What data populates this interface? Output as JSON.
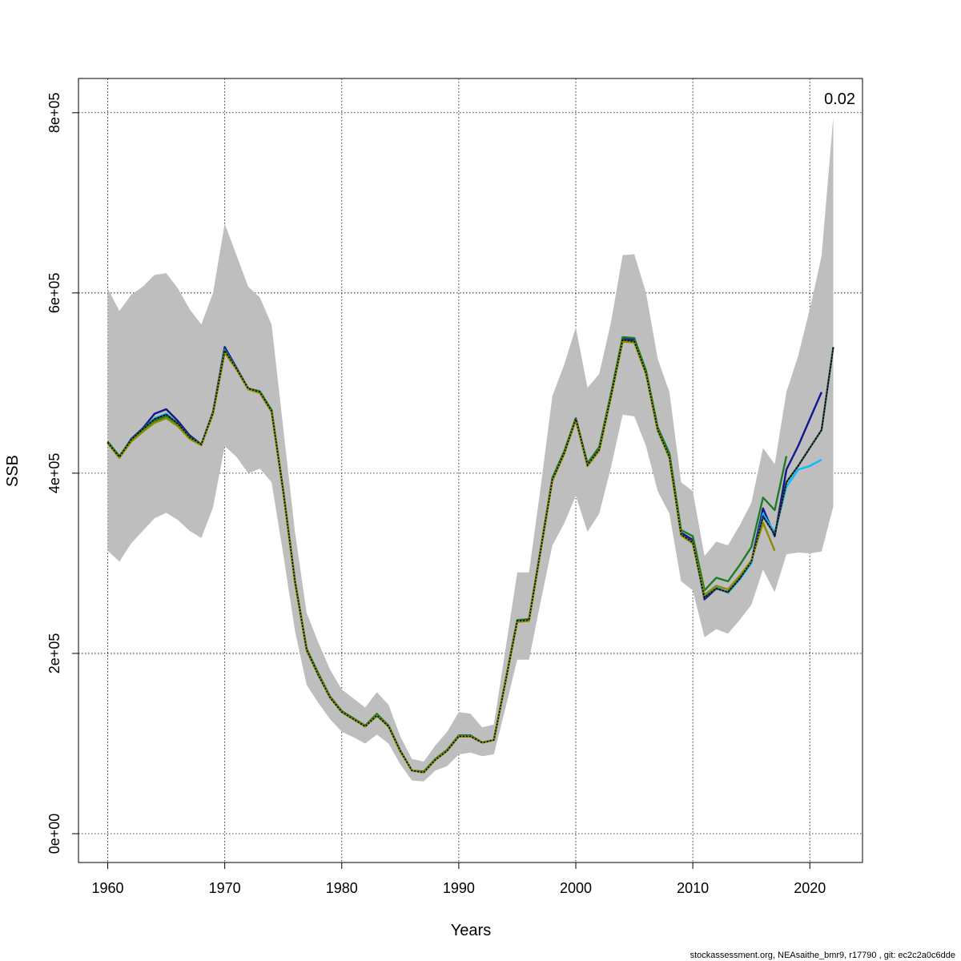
{
  "chart_data": {
    "type": "line",
    "title": "",
    "xlabel": "Years",
    "ylabel": "SSB",
    "xlim": [
      1957.5,
      2024.5
    ],
    "ylim": [
      -32000,
      838000
    ],
    "x_ticks": [
      1960,
      1970,
      1980,
      1990,
      2000,
      2010,
      2020
    ],
    "x_tick_labels": [
      "1960",
      "1970",
      "1980",
      "1990",
      "2000",
      "2010",
      "2020"
    ],
    "y_ticks": [
      0,
      200000,
      400000,
      600000,
      800000
    ],
    "y_tick_labels": [
      "0e+00",
      "2e+05",
      "4e+05",
      "6e+05",
      "8e+05"
    ],
    "grid": true,
    "annotation": "0.02",
    "footer": "stockassessment.org, NEAsaithe_bmr9, r17790 , git: ec2c2a0c6dde",
    "confidence_band": {
      "color": "#bebebe",
      "x": [
        1960,
        1961,
        1962,
        1963,
        1964,
        1965,
        1966,
        1967,
        1968,
        1969,
        1970,
        1971,
        1972,
        1973,
        1974,
        1975,
        1976,
        1977,
        1978,
        1979,
        1980,
        1981,
        1982,
        1983,
        1984,
        1985,
        1986,
        1987,
        1988,
        1989,
        1990,
        1991,
        1992,
        1993,
        1994,
        1995,
        1996,
        1997,
        1998,
        1999,
        2000,
        2001,
        2002,
        2003,
        2004,
        2005,
        2006,
        2007,
        2008,
        2009,
        2010,
        2011,
        2012,
        2013,
        2014,
        2015,
        2016,
        2017,
        2018,
        2019,
        2020,
        2021,
        2022
      ],
      "upper": [
        605000,
        580000,
        598000,
        607000,
        620000,
        622000,
        605000,
        582000,
        565000,
        600000,
        677000,
        642000,
        607000,
        595000,
        565000,
        450000,
        335000,
        245000,
        212000,
        182000,
        160000,
        150000,
        140000,
        157000,
        143000,
        108000,
        83000,
        80000,
        98000,
        113000,
        135000,
        133000,
        118000,
        121000,
        205000,
        290000,
        290000,
        385000,
        486000,
        520000,
        562000,
        495000,
        510000,
        567000,
        642000,
        643000,
        600000,
        527000,
        490000,
        390000,
        380000,
        308000,
        324000,
        320000,
        342000,
        367000,
        428000,
        410000,
        490000,
        530000,
        582000,
        641000,
        795000
      ],
      "lower": [
        314000,
        302000,
        322000,
        336000,
        350000,
        356000,
        348000,
        336000,
        328000,
        362000,
        430000,
        418000,
        400000,
        405000,
        390000,
        310000,
        225000,
        165000,
        145000,
        127000,
        113000,
        107000,
        100000,
        110000,
        100000,
        77000,
        59000,
        58000,
        70000,
        75000,
        88000,
        90000,
        86000,
        88000,
        140000,
        193000,
        193000,
        258000,
        320000,
        344000,
        375000,
        335000,
        355000,
        406000,
        465000,
        463000,
        430000,
        380000,
        355000,
        280000,
        270000,
        218000,
        227000,
        222000,
        237000,
        254000,
        293000,
        268000,
        310000,
        312000,
        311000,
        313000,
        363000
      ]
    },
    "series": [
      {
        "color": "#12168f",
        "x": [
          1960,
          1961,
          1962,
          1963,
          1964,
          1965,
          1966,
          1967,
          1968,
          1969,
          1970,
          1971,
          1972,
          1973,
          1974,
          1975,
          1976,
          1977,
          1978,
          1979,
          1980,
          1981,
          1982,
          1983,
          1984,
          1985,
          1986,
          1987,
          1988,
          1989,
          1990,
          1991,
          1992,
          1993,
          1994,
          1995,
          1996,
          1997,
          1998,
          1999,
          2000,
          2001,
          2002,
          2003,
          2004,
          2005,
          2006,
          2007,
          2008,
          2009,
          2010,
          2011,
          2012,
          2013,
          2014,
          2015,
          2016,
          2017,
          2018,
          2019,
          2020,
          2021
        ],
        "values": [
          435000,
          418000,
          438000,
          450000,
          466000,
          471000,
          458000,
          442000,
          432000,
          468000,
          540000,
          517000,
          494000,
          490000,
          470000,
          380000,
          280000,
          205000,
          177000,
          152000,
          136000,
          128000,
          119000,
          132000,
          120000,
          92000,
          70000,
          68000,
          82000,
          92000,
          109000,
          109000,
          101000,
          104000,
          170000,
          237000,
          238000,
          316000,
          394000,
          423000,
          461000,
          410000,
          427000,
          487000,
          550000,
          548000,
          513000,
          450000,
          420000,
          334000,
          326000,
          260000,
          272000,
          268000,
          285000,
          302000,
          361000,
          330000,
          404000,
          430000,
          460000,
          490000
        ]
      },
      {
        "color": "#00bfff",
        "x": [
          1960,
          1961,
          1962,
          1963,
          1964,
          1965,
          1966,
          1967,
          1968,
          1969,
          1970,
          1971,
          1972,
          1973,
          1974,
          1975,
          1976,
          1977,
          1978,
          1979,
          1980,
          1981,
          1982,
          1983,
          1984,
          1985,
          1986,
          1987,
          1988,
          1989,
          1990,
          1991,
          1992,
          1993,
          1994,
          1995,
          1996,
          1997,
          1998,
          1999,
          2000,
          2001,
          2002,
          2003,
          2004,
          2005,
          2006,
          2007,
          2008,
          2009,
          2010,
          2011,
          2012,
          2013,
          2014,
          2015,
          2016,
          2017,
          2018,
          2019,
          2020,
          2021
        ],
        "values": [
          434000,
          418000,
          437000,
          449000,
          461000,
          466000,
          455000,
          440000,
          432000,
          467000,
          537000,
          516000,
          494000,
          490000,
          469000,
          380000,
          280000,
          204000,
          176000,
          151000,
          135000,
          127000,
          119000,
          131000,
          119000,
          92000,
          70000,
          68000,
          82000,
          92000,
          108000,
          108000,
          101000,
          104000,
          169000,
          236000,
          237000,
          315000,
          393000,
          422000,
          460000,
          409000,
          426000,
          485000,
          548000,
          546000,
          511000,
          448000,
          418000,
          332000,
          323000,
          262000,
          274000,
          267000,
          282000,
          300000,
          355000,
          334000,
          385000,
          404000,
          408000,
          415000
        ]
      },
      {
        "color": "#2f4f4f",
        "x": [
          1960,
          1961,
          1962,
          1963,
          1964,
          1965,
          1966,
          1967,
          1968,
          1969,
          1970,
          1971,
          1972,
          1973,
          1974,
          1975,
          1976,
          1977,
          1978,
          1979,
          1980,
          1981,
          1982,
          1983,
          1984,
          1985,
          1986,
          1987,
          1988,
          1989,
          1990,
          1991,
          1992,
          1993,
          1994,
          1995,
          1996,
          1997,
          1998,
          1999,
          2000,
          2001,
          2002,
          2003,
          2004,
          2005,
          2006,
          2007,
          2008,
          2009,
          2010,
          2011,
          2012,
          2013,
          2014,
          2015,
          2016,
          2017,
          2018,
          2019,
          2020,
          2021,
          2022
        ],
        "values": [
          434000,
          418000,
          437000,
          449000,
          460000,
          465000,
          455000,
          440000,
          432000,
          467000,
          536000,
          516000,
          494000,
          490000,
          469000,
          380000,
          280000,
          204000,
          176000,
          151000,
          135000,
          127000,
          119000,
          131000,
          119000,
          92000,
          70000,
          68000,
          82000,
          92000,
          108000,
          108000,
          101000,
          104000,
          169000,
          236000,
          237000,
          315000,
          393000,
          422000,
          460000,
          409000,
          426000,
          485000,
          548000,
          546000,
          511000,
          448000,
          418000,
          332000,
          323000,
          262000,
          272000,
          268000,
          283000,
          302000,
          352000,
          332000,
          390000,
          408000,
          428000,
          448000,
          540000
        ]
      },
      {
        "color": "#1e7a2c",
        "x": [
          1960,
          1961,
          1962,
          1963,
          1964,
          1965,
          1966,
          1967,
          1968,
          1969,
          1970,
          1971,
          1972,
          1973,
          1974,
          1975,
          1976,
          1977,
          1978,
          1979,
          1980,
          1981,
          1982,
          1983,
          1984,
          1985,
          1986,
          1987,
          1988,
          1989,
          1990,
          1991,
          1992,
          1993,
          1994,
          1995,
          1996,
          1997,
          1998,
          1999,
          2000,
          2001,
          2002,
          2003,
          2004,
          2005,
          2006,
          2007,
          2008,
          2009,
          2010,
          2011,
          2012,
          2013,
          2014,
          2015,
          2016,
          2017,
          2018
        ],
        "values": [
          435000,
          419000,
          437000,
          448000,
          458000,
          463000,
          454000,
          440000,
          432000,
          467000,
          536000,
          516000,
          494000,
          491000,
          470000,
          381000,
          281000,
          205000,
          178000,
          152000,
          136000,
          128000,
          120000,
          133000,
          120000,
          92000,
          70000,
          69000,
          83000,
          93000,
          109000,
          109000,
          101000,
          104000,
          170000,
          237000,
          238000,
          316000,
          395000,
          424000,
          461000,
          411000,
          429000,
          488000,
          551000,
          550000,
          514000,
          451000,
          422000,
          337000,
          330000,
          270000,
          284000,
          280000,
          298000,
          318000,
          373000,
          359000,
          419000
        ]
      },
      {
        "color": "#8b8b00",
        "x": [
          1960,
          1961,
          1962,
          1963,
          1964,
          1965,
          1966,
          1967,
          1968,
          1969,
          1970,
          1971,
          1972,
          1973,
          1974,
          1975,
          1976,
          1977,
          1978,
          1979,
          1980,
          1981,
          1982,
          1983,
          1984,
          1985,
          1986,
          1987,
          1988,
          1989,
          1990,
          1991,
          1992,
          1993,
          1994,
          1995,
          1996,
          1997,
          1998,
          1999,
          2000,
          2001,
          2002,
          2003,
          2004,
          2005,
          2006,
          2007,
          2008,
          2009,
          2010,
          2011,
          2012,
          2013,
          2014,
          2015,
          2016,
          2017
        ],
        "values": [
          433000,
          417000,
          435000,
          446000,
          456000,
          461000,
          452000,
          438000,
          431000,
          466000,
          534000,
          515000,
          493000,
          489000,
          468000,
          379000,
          279000,
          203000,
          176000,
          151000,
          135000,
          127000,
          119000,
          131000,
          119000,
          91000,
          70000,
          68000,
          82000,
          92000,
          108000,
          108000,
          101000,
          104000,
          169000,
          235000,
          236000,
          314000,
          392000,
          421000,
          459000,
          408000,
          425000,
          484000,
          546000,
          545000,
          510000,
          447000,
          417000,
          331000,
          322000,
          265000,
          275000,
          271000,
          286000,
          303000,
          345000,
          314000
        ]
      }
    ]
  }
}
